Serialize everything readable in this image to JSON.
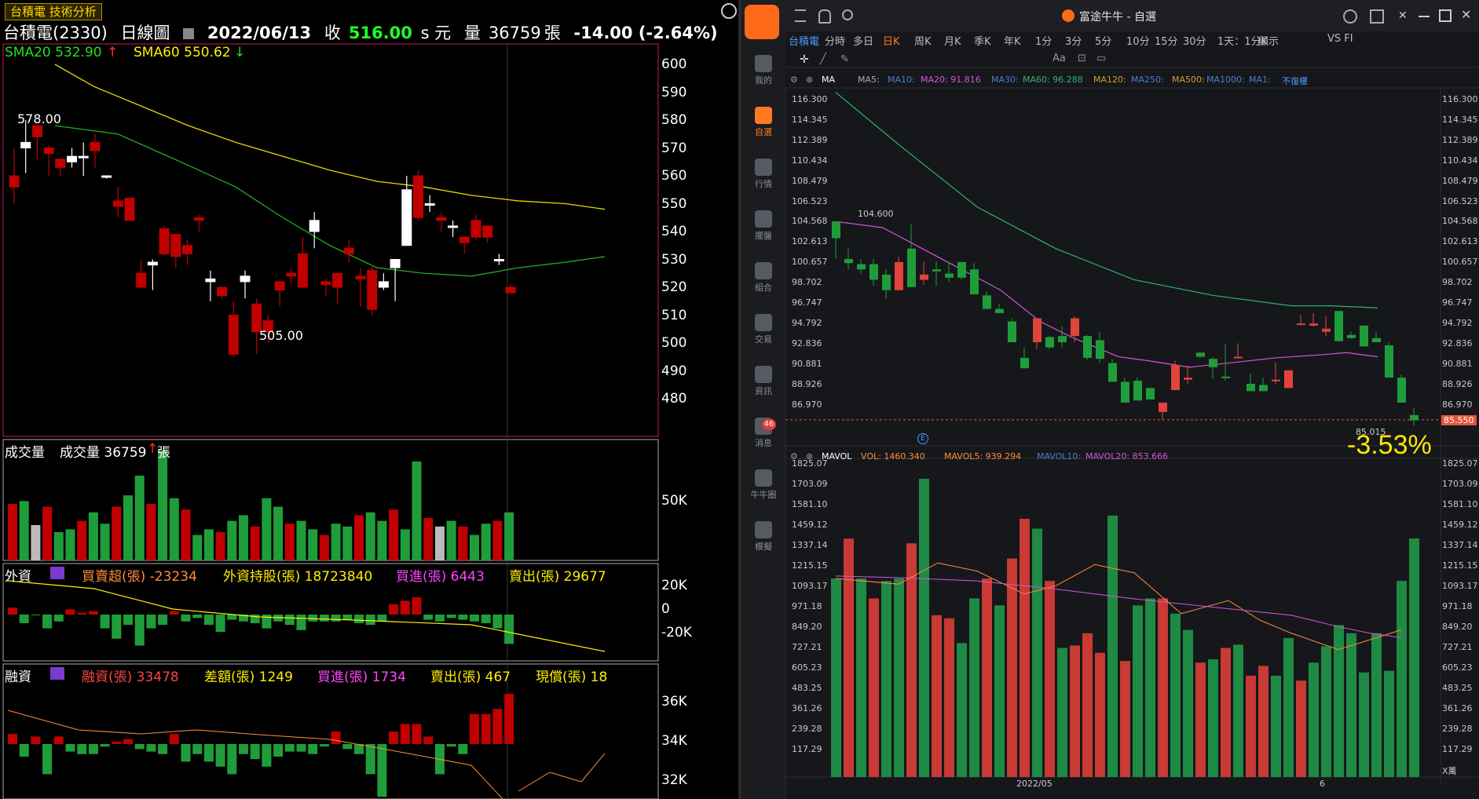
{
  "left": {
    "tab_label": "台積電 技術分析",
    "header": {
      "name": "台積電(2330)",
      "period": "日線圖",
      "date": "2022/06/13",
      "close_label": "收",
      "close": "516.00",
      "unit_s": "s 元",
      "vol_label": "量",
      "vol": "36759",
      "vol_unit": "張",
      "change": "-14.00 (-2.64%)"
    },
    "sma20": "SMA20 532.90",
    "sma60": "SMA60 550.62",
    "high_label": "578.00",
    "low_label": "505.00",
    "price_axis": [
      "600",
      "590",
      "580",
      "570",
      "560",
      "550",
      "540",
      "530",
      "520",
      "510",
      "500",
      "490",
      "480"
    ],
    "vol_panel": {
      "title": "成交量",
      "label": "成交量 36759",
      "unit": "張",
      "axis": "50K"
    },
    "foreign_panel": {
      "title": "外資",
      "net": "買賣超(張) -23234",
      "hold": "外資持股(張) 18723840",
      "buy": "買進(張) 6443",
      "sell": "賣出(張) 29677",
      "axis": [
        "20K",
        "0",
        "-20K"
      ]
    },
    "margin_panel": {
      "title": "融資",
      "balance": "融資(張) 33478",
      "diff": "差額(張) 1249",
      "buy": "買進(張) 1734",
      "sell": "賣出(張) 467",
      "repay": "現償(張) 18",
      "axis": [
        "36K",
        "34K",
        "32K"
      ]
    }
  },
  "right": {
    "window_title": "富途牛牛 - 自選",
    "sidebar": [
      "我的",
      "自選",
      "行情",
      "擺盤",
      "組合",
      "交易",
      "資訊",
      "消息",
      "牛牛圈",
      "模擬"
    ],
    "msg_badge": "46",
    "tabs": [
      "台積電",
      "分時",
      "多日",
      "日K",
      "周K",
      "月K",
      "季K",
      "年K",
      "1分",
      "3分",
      "5分",
      "10分",
      "15分",
      "30分",
      "1天：1分K",
      "顯示",
      "VS FI"
    ],
    "ma_bar": {
      "ma": "MA",
      "ma5": "MA5:",
      "ma10": "MA10:",
      "ma20": "MA20: 91.816",
      "ma30": "MA30:",
      "ma60": "MA60: 96.288",
      "ma120": "MA120:",
      "ma250": "MA250:",
      "ma500": "MA500:",
      "ma1000": "MA1000:",
      "ma1": "MA1:",
      "no_adjust": "不復權"
    },
    "price_axis": [
      "116.300",
      "114.345",
      "112.389",
      "110.434",
      "108.479",
      "106.523",
      "104.568",
      "102.613",
      "100.657",
      "98.702",
      "96.747",
      "94.792",
      "92.836",
      "90.881",
      "88.926",
      "86.970"
    ],
    "last_price": "85.550",
    "last_price2": "85.015",
    "hi_label": "104.600",
    "pct": "-3.53%",
    "vol_bar": {
      "name": "MAVOL",
      "vol": "VOL: 1460.340",
      "mavol5": "MAVOL5: 939.294",
      "mavol10": "MAVOL10:",
      "mavol20": "MAVOL20: 853.666"
    },
    "vol_axis": [
      "1825.07",
      "1703.09",
      "1581.10",
      "1459.12",
      "1337.14",
      "1215.15",
      "1093.17",
      "971.18",
      "849.20",
      "727.21",
      "605.23",
      "483.25",
      "361.26",
      "239.28",
      "117.29"
    ],
    "vol_unit": "X萬",
    "date_labels": [
      "2022/05",
      "6"
    ]
  },
  "colors": {
    "up": "#d02020",
    "down": "#1f9d3a",
    "sma20": "#22aa22",
    "sma60": "#e6d800",
    "ma60": "#2fb36b",
    "ma20": "#d257d9",
    "accent": "#ff7a1f"
  }
}
